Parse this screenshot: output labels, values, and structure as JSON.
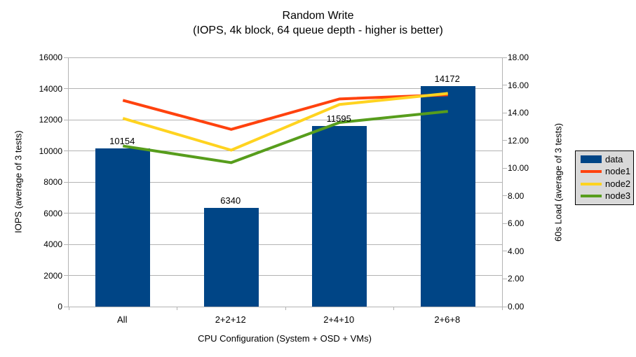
{
  "title": "Random Write",
  "subtitle": "(IOPS, 4k block, 64 queue depth - higher is better)",
  "colors": {
    "bar_blue": "#004586",
    "node1_red": "#ff420e",
    "node2_yellow": "#ffd320",
    "node3_green": "#579d1c",
    "gridline_gray": "#b3b3b3",
    "legend_bg": "#d9d9d9",
    "text": "#000000"
  },
  "chart_data": {
    "type": "bar",
    "title": "Random Write",
    "subtitle": "(IOPS, 4k block, 64 queue depth - higher is better)",
    "categories": [
      "All",
      "2+2+12",
      "2+4+10",
      "2+6+8"
    ],
    "series": [
      {
        "name": "data",
        "type": "bar",
        "axis": "left",
        "color": "#004586",
        "values": [
          10154,
          6340,
          11595,
          14172
        ],
        "data_labels": [
          "10154",
          "6340",
          "11595",
          "14172"
        ]
      },
      {
        "name": "node1",
        "type": "line",
        "axis": "right",
        "color": "#ff420e",
        "values": [
          14.9,
          12.8,
          15.0,
          15.3
        ]
      },
      {
        "name": "node2",
        "type": "line",
        "axis": "right",
        "color": "#ffd320",
        "values": [
          13.6,
          11.3,
          14.6,
          15.4
        ]
      },
      {
        "name": "node3",
        "type": "line",
        "axis": "right",
        "color": "#579d1c",
        "values": [
          11.6,
          10.4,
          13.3,
          14.1
        ]
      }
    ],
    "xlabel": "CPU Configuration (System + OSD + VMs)",
    "ylabel_left": "IOPS (average of 3 tests)",
    "ylabel_right": "60s Load (average of 3 tests)",
    "ylim_left": [
      0,
      16000
    ],
    "ylim_right": [
      0,
      18
    ],
    "left_ticks": [
      {
        "label": "0",
        "v": 0
      },
      {
        "label": "2000",
        "v": 2000
      },
      {
        "label": "4000",
        "v": 4000
      },
      {
        "label": "6000",
        "v": 6000
      },
      {
        "label": "8000",
        "v": 8000
      },
      {
        "label": "10000",
        "v": 10000
      },
      {
        "label": "12000",
        "v": 12000
      },
      {
        "label": "14000",
        "v": 14000
      },
      {
        "label": "16000",
        "v": 16000
      }
    ],
    "right_ticks": [
      {
        "label": "0.00",
        "v": 0
      },
      {
        "label": "2.00",
        "v": 2
      },
      {
        "label": "4.00",
        "v": 4
      },
      {
        "label": "6.00",
        "v": 6
      },
      {
        "label": "8.00",
        "v": 8
      },
      {
        "label": "10.00",
        "v": 10
      },
      {
        "label": "12.00",
        "v": 12
      },
      {
        "label": "14.00",
        "v": 14
      },
      {
        "label": "16.00",
        "v": 16
      },
      {
        "label": "18.00",
        "v": 18
      }
    ],
    "grid": true,
    "legend_position": "right",
    "legend_labels": [
      "data",
      "node1",
      "node2",
      "node3"
    ]
  }
}
